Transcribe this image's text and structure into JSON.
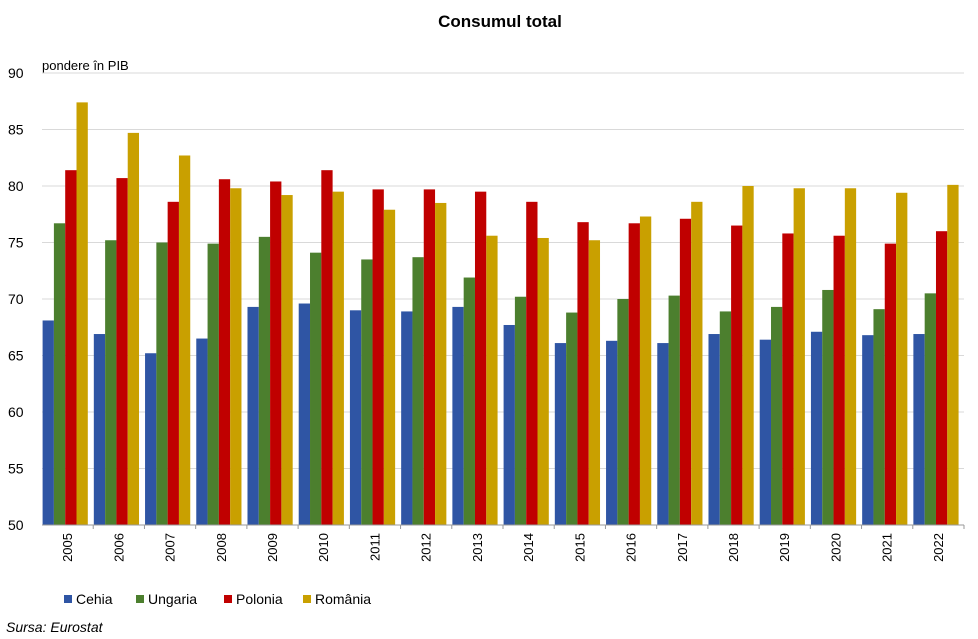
{
  "chart_data": {
    "type": "bar",
    "title": "Consumul  total",
    "ylabel": "pondere  în PIB",
    "xlabel": "",
    "ylim": [
      50,
      90
    ],
    "yticks": [
      50,
      55,
      60,
      65,
      70,
      75,
      80,
      85,
      90
    ],
    "grid": true,
    "legend_position": "bottom-left",
    "categories": [
      "2005",
      "2006",
      "2007",
      "2008",
      "2009",
      "2010",
      "2011",
      "2012",
      "2013",
      "2014",
      "2015",
      "2016",
      "2017",
      "2018",
      "2019",
      "2020",
      "2021",
      "2022"
    ],
    "series": [
      {
        "name": "Cehia",
        "color": "#2F55A4",
        "values": [
          68.1,
          66.9,
          65.2,
          66.5,
          69.3,
          69.6,
          69.0,
          68.9,
          69.3,
          67.7,
          66.1,
          66.3,
          66.1,
          66.9,
          66.4,
          67.1,
          66.8,
          66.9
        ]
      },
      {
        "name": "Ungaria",
        "color": "#4C7F2E",
        "values": [
          76.7,
          75.2,
          75.0,
          74.9,
          75.5,
          74.1,
          73.5,
          73.7,
          71.9,
          70.2,
          68.8,
          70.0,
          70.3,
          68.9,
          69.3,
          70.8,
          69.1,
          70.5
        ]
      },
      {
        "name": "Polonia",
        "color": "#C00000",
        "values": [
          81.4,
          80.7,
          78.6,
          80.6,
          80.4,
          81.4,
          79.7,
          79.7,
          79.5,
          78.6,
          76.8,
          76.7,
          77.1,
          76.5,
          75.8,
          75.6,
          74.9,
          76.0
        ]
      },
      {
        "name": "România",
        "color": "#C9A000",
        "values": [
          87.4,
          84.7,
          82.7,
          79.8,
          79.2,
          79.5,
          77.9,
          78.5,
          75.6,
          75.4,
          75.2,
          77.3,
          78.6,
          80.0,
          79.8,
          79.8,
          79.4,
          80.1
        ]
      }
    ]
  },
  "source": "Sursa: Eurostat"
}
